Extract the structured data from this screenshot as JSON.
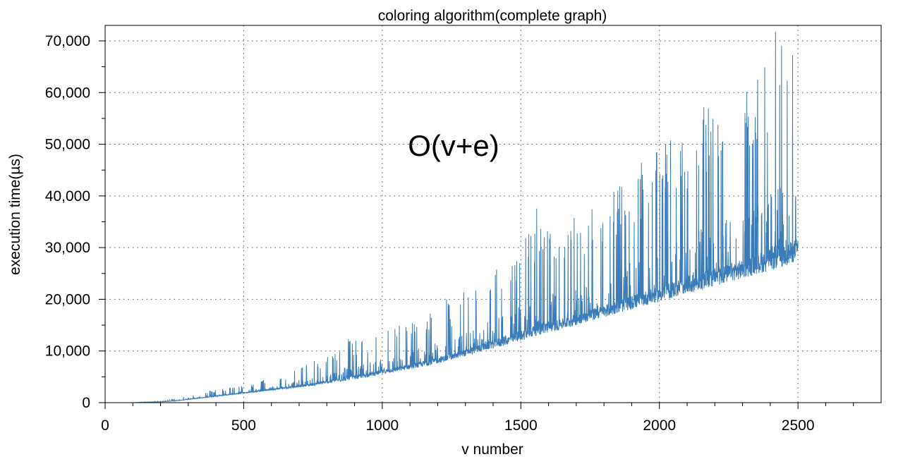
{
  "chart_data": {
    "type": "line",
    "title": "coloring algorithm(complete graph)",
    "xlabel": "v number",
    "ylabel": "execution time(µs)",
    "annotation": "O(v+e)",
    "xlim": [
      0,
      2800
    ],
    "ylim": [
      0,
      73000
    ],
    "x_ticks": [
      0,
      500,
      1000,
      1500,
      2000,
      2500
    ],
    "x_tick_labels": [
      "0",
      "500",
      "1000",
      "1500",
      "2000",
      "2500"
    ],
    "y_ticks": [
      0,
      10000,
      20000,
      30000,
      40000,
      50000,
      60000,
      70000
    ],
    "y_tick_labels": [
      "0",
      "10,000",
      "20,000",
      "30,000",
      "40,000",
      "50,000",
      "60,000",
      "70,000"
    ],
    "grid": true,
    "legend": "none",
    "series": [
      {
        "color": "#3a7bb8",
        "x": [
          100,
          150,
          200,
          250,
          300,
          350,
          400,
          450,
          500,
          550,
          600,
          650,
          700,
          750,
          800,
          850,
          880,
          900,
          950,
          1000,
          1050,
          1100,
          1150,
          1200,
          1230,
          1250,
          1300,
          1350,
          1400,
          1440,
          1450,
          1500,
          1550,
          1560,
          1600,
          1650,
          1700,
          1750,
          1800,
          1850,
          1900,
          1950,
          2000,
          2050,
          2100,
          2150,
          2200,
          2250,
          2300,
          2350,
          2400,
          2410,
          2450,
          2480,
          2500
        ],
        "y": [
          0,
          200,
          300,
          900,
          1500,
          2000,
          2600,
          3000,
          3300,
          4000,
          5000,
          5600,
          7000,
          8000,
          9000,
          11000,
          14500,
          12000,
          13000,
          14000,
          15000,
          16000,
          18000,
          19000,
          20500,
          19000,
          22000,
          24000,
          27000,
          29500,
          27000,
          32000,
          35000,
          40300,
          36000,
          34000,
          37000,
          38000,
          40000,
          43000,
          45000,
          47000,
          49000,
          52000,
          55000,
          57000,
          58000,
          59000,
          61000,
          63000,
          68000,
          73000,
          70000,
          69000,
          68500
        ],
        "min_y": [
          0,
          100,
          150,
          300,
          600,
          900,
          1200,
          1500,
          1800,
          2100,
          2400,
          2700,
          3000,
          3300,
          3700,
          4100,
          4300,
          4500,
          5000,
          5500,
          6000,
          6500,
          7000,
          7600,
          8000,
          8300,
          9000,
          9800,
          10500,
          11000,
          11200,
          12000,
          12800,
          13000,
          13500,
          14200,
          15000,
          15800,
          16500,
          17300,
          18000,
          18800,
          19500,
          20300,
          21000,
          21800,
          22500,
          23300,
          24000,
          24800,
          25500,
          25700,
          26300,
          27000,
          28000
        ]
      }
    ]
  }
}
